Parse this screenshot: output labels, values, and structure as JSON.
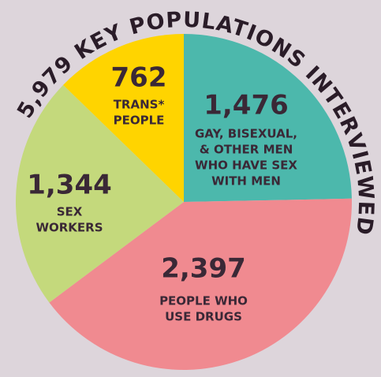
{
  "chart_data": {
    "type": "pie",
    "title": "5,979 KEY POPULATIONS INTERVIEWED",
    "categories": [
      [
        "GAY, BISEXUAL,",
        "& OTHER MEN",
        "WHO HAVE SEX",
        "WITH MEN"
      ],
      [
        "PEOPLE WHO",
        "USE DRUGS"
      ],
      [
        "SEX",
        "WORKERS"
      ],
      [
        "TRANS*",
        "PEOPLE"
      ]
    ],
    "values": [
      1476,
      2397,
      1344,
      762
    ],
    "value_labels": [
      "1,476",
      "2,397",
      "1,344",
      "762"
    ],
    "colors": [
      "#4cb8ac",
      "#f08a90",
      "#c4d97c",
      "#ffd400"
    ]
  }
}
